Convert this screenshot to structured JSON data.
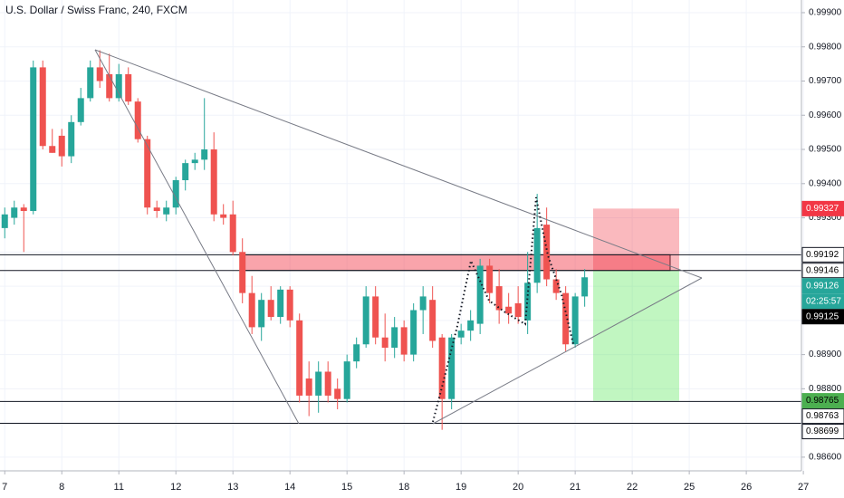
{
  "chart_data": {
    "type": "candlestick",
    "title": "U.S. Dollar / Swiss Franc, 240, FXCM",
    "up_color": "#26a69a",
    "down_color": "#ef5350",
    "open": [
      0.9927,
      0.993,
      0.9933,
      0.9932,
      0.9974,
      0.9951,
      0.9954,
      0.9948,
      0.9958,
      0.9965,
      0.9974,
      0.9972,
      0.9965,
      0.9972,
      0.9964,
      0.9953,
      0.9933,
      0.9931,
      0.9933,
      0.9941,
      0.9946,
      0.9947,
      0.995,
      0.9931,
      0.9931,
      0.992,
      0.9908,
      0.9898,
      0.9906,
      0.9901,
      0.9909,
      0.99,
      0.9883,
      0.9878,
      0.9885,
      0.988,
      0.9877,
      0.9888,
      0.9893,
      0.9907,
      0.9895,
      0.9892,
      0.9898,
      0.989,
      0.9903,
      0.9906,
      0.9895,
      0.9877,
      0.9895,
      0.9897,
      0.9899,
      0.9916,
      0.991,
      0.9904,
      0.9905,
      0.99,
      0.9911,
      0.9928,
      0.9912,
      0.9908,
      0.9893,
      0.9907
    ],
    "high": [
      0.9933,
      0.9935,
      0.9934,
      0.9976,
      0.9976,
      0.9956,
      0.9956,
      0.996,
      0.9968,
      0.9976,
      0.9979,
      0.9978,
      0.9975,
      0.9974,
      0.9965,
      0.9954,
      0.9935,
      0.9935,
      0.9942,
      0.9947,
      0.9949,
      0.9965,
      0.9955,
      0.9934,
      0.9935,
      0.9924,
      0.9913,
      0.9908,
      0.991,
      0.991,
      0.991,
      0.9902,
      0.9888,
      0.9888,
      0.9888,
      0.9883,
      0.989,
      0.9895,
      0.991,
      0.991,
      0.9902,
      0.9901,
      0.99,
      0.9905,
      0.991,
      0.991,
      0.9896,
      0.9896,
      0.9899,
      0.9903,
      0.9918,
      0.9918,
      0.9915,
      0.9908,
      0.991,
      0.992,
      0.9937,
      0.9933,
      0.9915,
      0.991,
      0.9908,
      0.9915
    ],
    "low": [
      0.9924,
      0.9928,
      0.992,
      0.9931,
      0.995,
      0.9949,
      0.9945,
      0.9946,
      0.9957,
      0.9964,
      0.9968,
      0.9964,
      0.9964,
      0.9963,
      0.9952,
      0.9931,
      0.993,
      0.9929,
      0.9931,
      0.9938,
      0.9944,
      0.9944,
      0.9929,
      0.9928,
      0.9919,
      0.9905,
      0.9896,
      0.9894,
      0.99,
      0.9899,
      0.9898,
      0.9876,
      0.9872,
      0.9873,
      0.9876,
      0.9874,
      0.9876,
      0.9886,
      0.9892,
      0.9893,
      0.9888,
      0.9889,
      0.9888,
      0.9888,
      0.9896,
      0.9892,
      0.9868,
      0.9874,
      0.9893,
      0.9894,
      0.9896,
      0.9905,
      0.9899,
      0.9899,
      0.9899,
      0.9896,
      0.9908,
      0.991,
      0.9906,
      0.9891,
      0.9892,
      0.9904
    ],
    "close": [
      0.9931,
      0.9933,
      0.9932,
      0.9974,
      0.9951,
      0.9949,
      0.9948,
      0.9958,
      0.9965,
      0.9974,
      0.997,
      0.9965,
      0.9972,
      0.9964,
      0.9953,
      0.9933,
      0.9932,
      0.9933,
      0.9941,
      0.9946,
      0.9947,
      0.995,
      0.9931,
      0.993,
      0.992,
      0.9908,
      0.9898,
      0.9906,
      0.9901,
      0.9909,
      0.99,
      0.9878,
      0.9878,
      0.9885,
      0.9878,
      0.9877,
      0.9888,
      0.9893,
      0.9907,
      0.9895,
      0.9892,
      0.9898,
      0.989,
      0.9903,
      0.9907,
      0.9894,
      0.9877,
      0.9895,
      0.9897,
      0.99,
      0.9916,
      0.9908,
      0.9903,
      0.9902,
      0.9901,
      0.9911,
      0.9927,
      0.9912,
      0.9908,
      0.9893,
      0.9907,
      0.99126
    ],
    "xlim": [
      -0.5,
      83.8
    ],
    "xticks": [
      {
        "value": 0,
        "label": "7"
      },
      {
        "value": 6,
        "label": "8"
      },
      {
        "value": 12,
        "label": "11"
      },
      {
        "value": 18,
        "label": "12"
      },
      {
        "value": 24,
        "label": "13"
      },
      {
        "value": 30,
        "label": "14"
      },
      {
        "value": 36,
        "label": "15"
      },
      {
        "value": 42,
        "label": "18"
      },
      {
        "value": 48,
        "label": "19"
      },
      {
        "value": 54,
        "label": "20"
      },
      {
        "value": 60,
        "label": "21"
      },
      {
        "value": 66,
        "label": "22"
      },
      {
        "value": 72,
        "label": "25"
      },
      {
        "value": 78,
        "label": "26"
      },
      {
        "value": 84,
        "label": "27"
      }
    ],
    "ylim": [
      0.9856,
      0.99937
    ],
    "yticks": [
      {
        "value": 0.999,
        "label": "0.99900"
      },
      {
        "value": 0.998,
        "label": "0.99800"
      },
      {
        "value": 0.997,
        "label": "0.99700"
      },
      {
        "value": 0.996,
        "label": "0.99600"
      },
      {
        "value": 0.995,
        "label": "0.99500"
      },
      {
        "value": 0.994,
        "label": "0.99400"
      },
      {
        "value": 0.993,
        "label": "0.99300"
      },
      {
        "value": 0.992,
        "label": "0.99200"
      },
      {
        "value": 0.991,
        "label": "0.99100"
      },
      {
        "value": 0.99,
        "label": "0.99000"
      },
      {
        "value": 0.989,
        "label": "0.98900"
      },
      {
        "value": 0.988,
        "label": "0.98800"
      },
      {
        "value": 0.987,
        "label": "0.98700"
      },
      {
        "value": 0.986,
        "label": "0.98600"
      }
    ],
    "grid": true,
    "levels": [
      0.99192,
      0.99146,
      0.98763,
      0.98699
    ],
    "range_box": {
      "top": 0.99192,
      "bottom": 0.99146
    },
    "position": {
      "stop": 0.99327,
      "entry": 0.99146,
      "target": 0.98765
    },
    "price_tags": [
      {
        "value": 0.99327,
        "bg": "#f23645",
        "fg": "#ffffff"
      },
      {
        "value": 0.99192,
        "bg": "#ffffff",
        "fg": "#000000"
      },
      {
        "value": 0.99146,
        "bg": "#ffffff",
        "fg": "#000000"
      },
      {
        "value": 0.99126,
        "bg": "#26a69a",
        "fg": "#ffffff"
      },
      {
        "label": "02:25:57",
        "bg": "#26a69a",
        "fg": "#ffffff"
      },
      {
        "value": 0.99125,
        "bg": "#000000",
        "fg": "#ffffff"
      },
      {
        "value": 0.98765,
        "bg": "#4caf50",
        "fg": "#000000"
      },
      {
        "value": 0.98763,
        "bg": "#ffffff",
        "fg": "#000000"
      },
      {
        "value": 0.98699,
        "bg": "#ffffff",
        "fg": "#000000"
      }
    ]
  }
}
